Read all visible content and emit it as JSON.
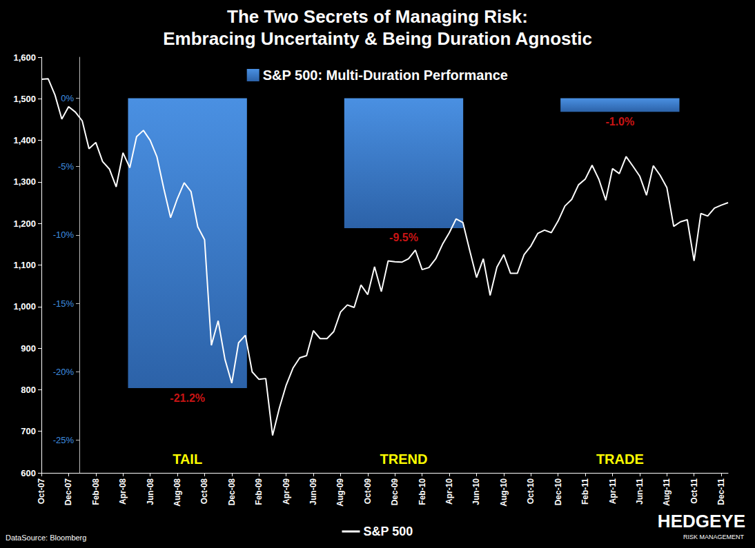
{
  "chart_data": [
    {
      "type": "line",
      "title": "The Two Secrets of Managing Risk:",
      "subtitle": "Embracing Uncertainty & Being Duration Agnostic",
      "annotations": [
        "DataSource: Bloomberg",
        "HEDGEYE",
        "RISK MANAGEMENT"
      ],
      "categories": [
        "Oct-07",
        null,
        null,
        null,
        "Dec-07",
        null,
        null,
        null,
        "Feb-08",
        null,
        null,
        null,
        "Apr-08",
        null,
        null,
        null,
        "Jun-08",
        null,
        null,
        null,
        "Aug-08",
        null,
        null,
        null,
        "Oct-08",
        null,
        null,
        null,
        "Dec-08",
        null,
        null,
        null,
        "Feb-09",
        null,
        null,
        null,
        "Apr-09",
        null,
        null,
        null,
        "Jun-09",
        null,
        null,
        null,
        "Aug-09",
        null,
        null,
        null,
        "Oct-09",
        null,
        null,
        null,
        "Dec-09",
        null,
        null,
        null,
        "Feb-10",
        null,
        null,
        null,
        "Apr-10",
        null,
        null,
        null,
        "Jun-10",
        null,
        null,
        null,
        "Aug-10",
        null,
        null,
        null,
        "Oct-10",
        null,
        null,
        null,
        "Dec-10",
        null,
        null,
        null,
        "Feb-11",
        null,
        null,
        null,
        "Apr-11",
        null,
        null,
        null,
        "Jun-11",
        null,
        null,
        null,
        "Aug-11",
        null,
        null,
        null,
        "Oct-11",
        null,
        null,
        null,
        "Dec-11",
        null
      ],
      "series": [
        {
          "name": "S&P 500",
          "color": "#ffffff",
          "values": [
            1547,
            1548,
            1509,
            1451,
            1481,
            1468,
            1447,
            1380,
            1395,
            1349,
            1331,
            1288,
            1370,
            1334,
            1409,
            1424,
            1400,
            1360,
            1284,
            1214,
            1260,
            1298,
            1277,
            1192,
            1161,
            907,
            966,
            873,
            816,
            913,
            931,
            843,
            825,
            827,
            690,
            756,
            811,
            852,
            877,
            882,
            942,
            923,
            923,
            940,
            987,
            1004,
            998,
            1052,
            1029,
            1096,
            1036,
            1110,
            1108,
            1107,
            1115,
            1136,
            1089,
            1094,
            1115,
            1150,
            1178,
            1211,
            1202,
            1135,
            1070,
            1115,
            1027,
            1095,
            1125,
            1080,
            1080,
            1125,
            1146,
            1176,
            1184,
            1178,
            1206,
            1242,
            1258,
            1293,
            1307,
            1340,
            1306,
            1256,
            1332,
            1320,
            1361,
            1338,
            1314,
            1268,
            1339,
            1316,
            1286,
            1193,
            1204,
            1209,
            1110,
            1224,
            1218,
            1237,
            1244,
            1250
          ]
        }
      ],
      "ylim": [
        600,
        1600
      ],
      "yticks": [
        600,
        700,
        800,
        900,
        1000,
        1100,
        1200,
        1300,
        1400,
        1500,
        1600
      ],
      "grid": false,
      "legend": "bottom"
    },
    {
      "type": "bar",
      "categories": [
        "TAIL",
        "TREND",
        "TRADE"
      ],
      "series": [
        {
          "name": "S&P 500: Multi-Duration Performance",
          "color": "#4a90e2",
          "values": [
            -21.2,
            -9.5,
            -1.0
          ],
          "value_labels": [
            "-21.2%",
            "-9.5%",
            "-1.0%"
          ]
        }
      ],
      "ylim": [
        -27.4,
        3
      ],
      "yticks": [
        {
          "value": 0,
          "label": "0%"
        },
        {
          "value": -5,
          "label": "-5%"
        },
        {
          "value": -10,
          "label": "-10%"
        },
        {
          "value": -15,
          "label": "-15%"
        },
        {
          "value": -20,
          "label": "-20%"
        },
        {
          "value": -25,
          "label": "-25%"
        }
      ],
      "grid": false,
      "data_labels": true,
      "legend": "top"
    }
  ]
}
